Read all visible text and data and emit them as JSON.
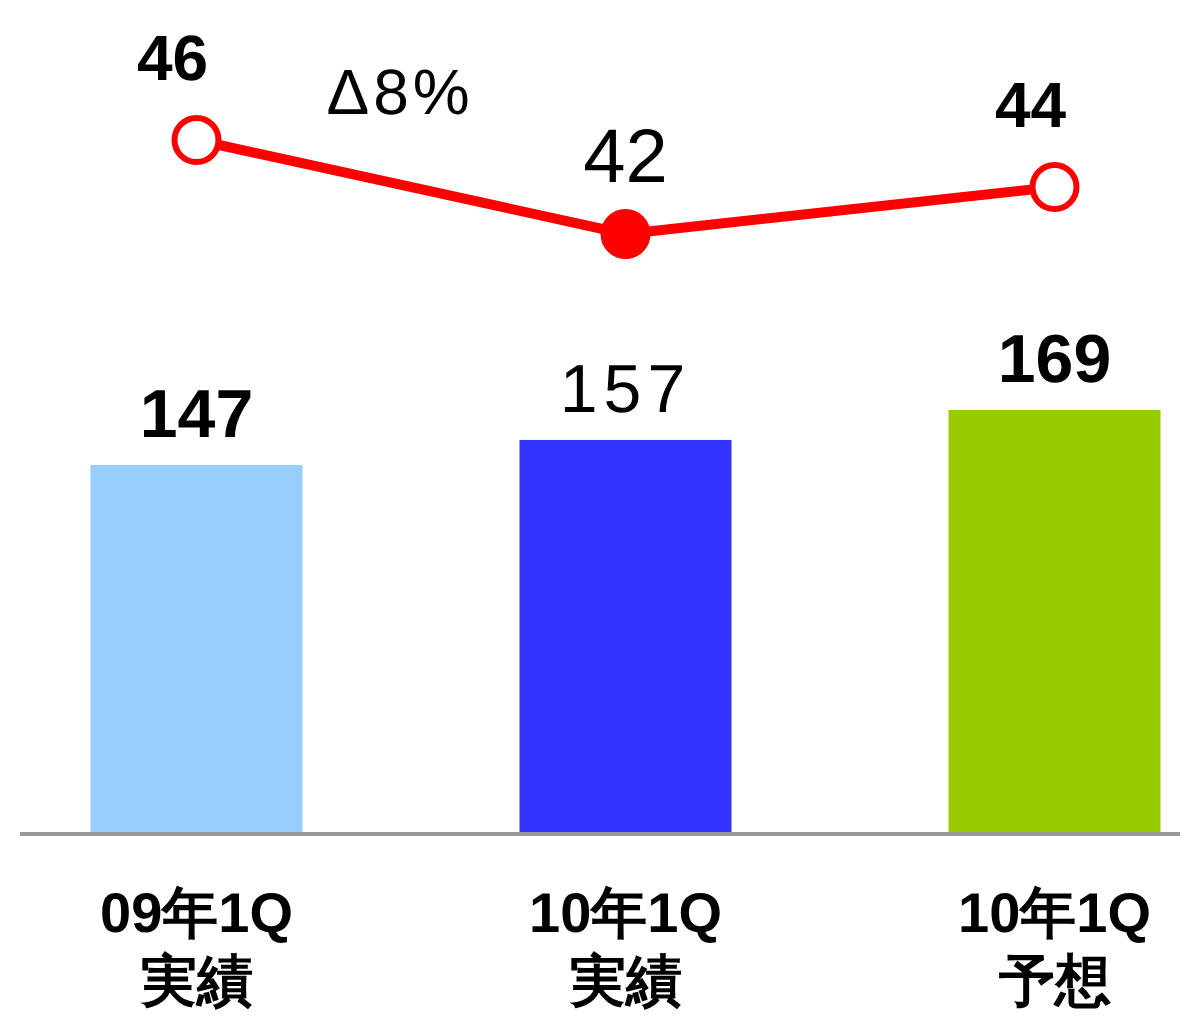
{
  "chart_data": [
    {
      "type": "line",
      "categories": [
        null,
        null,
        null
      ],
      "series": [
        {
          "color": "#ff0000",
          "values": [
            46,
            42,
            44
          ],
          "marker": "circle"
        }
      ],
      "data_labels": true,
      "annotations": [
        "Δ8%"
      ]
    },
    {
      "type": "bar",
      "categories": [
        "09年1Q\n実績",
        "10年1Q\n実績",
        "10年1Q\n予想"
      ],
      "tick_labels": "x",
      "series": [
        {
          "colors": [
            "#99ccff",
            "#3333ff",
            "#99cc00"
          ],
          "values": [
            147,
            157,
            169
          ]
        }
      ],
      "data_labels": true
    }
  ]
}
